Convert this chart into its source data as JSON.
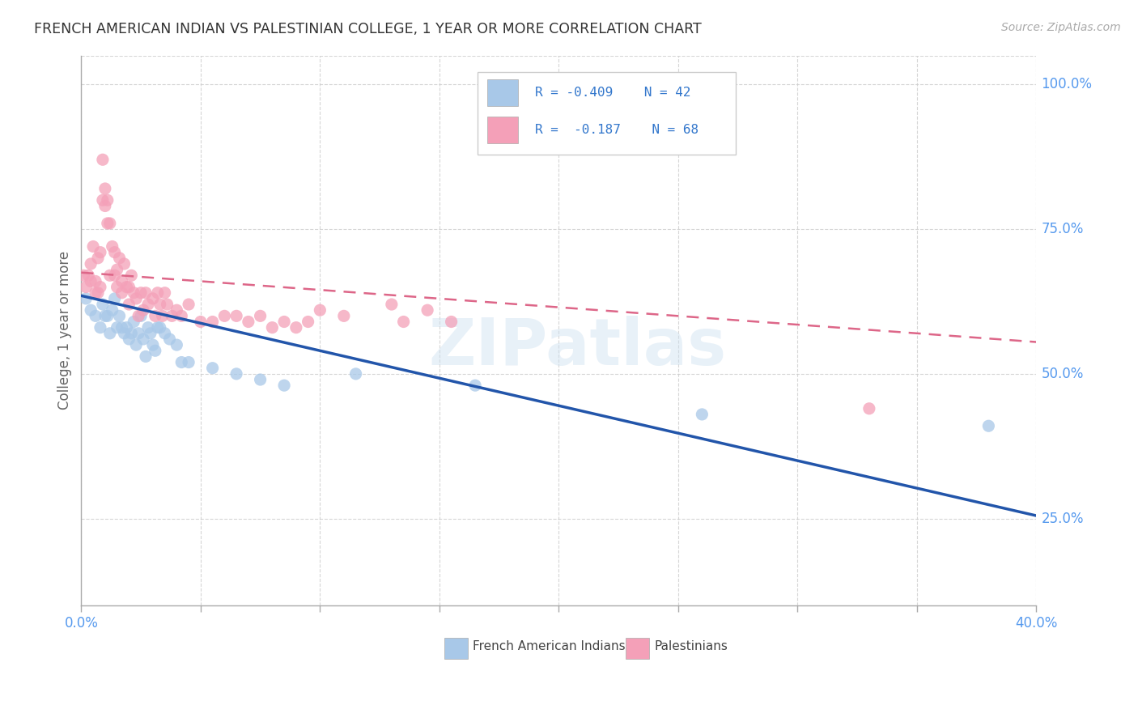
{
  "title": "FRENCH AMERICAN INDIAN VS PALESTINIAN COLLEGE, 1 YEAR OR MORE CORRELATION CHART",
  "source": "Source: ZipAtlas.com",
  "ylabel": "College, 1 year or more",
  "right_yticks": [
    "100.0%",
    "75.0%",
    "50.0%",
    "25.0%"
  ],
  "right_ytick_vals": [
    1.0,
    0.75,
    0.5,
    0.25
  ],
  "legend_blue_label": "French American Indians",
  "legend_pink_label": "Palestinians",
  "legend_blue_R": "R = -0.409",
  "legend_blue_N": "N = 42",
  "legend_pink_R": "R =  -0.187",
  "legend_pink_N": "N = 68",
  "blue_color": "#a8c8e8",
  "pink_color": "#f4a0b8",
  "blue_line_color": "#2255aa",
  "pink_line_color": "#dd6688",
  "watermark": "ZIPatlas",
  "blue_points_x": [
    0.002,
    0.004,
    0.006,
    0.008,
    0.009,
    0.01,
    0.011,
    0.012,
    0.013,
    0.014,
    0.015,
    0.016,
    0.017,
    0.018,
    0.019,
    0.02,
    0.021,
    0.022,
    0.023,
    0.024,
    0.025,
    0.026,
    0.027,
    0.028,
    0.029,
    0.03,
    0.031,
    0.032,
    0.033,
    0.035,
    0.037,
    0.04,
    0.042,
    0.045,
    0.055,
    0.065,
    0.075,
    0.085,
    0.115,
    0.165,
    0.26,
    0.38
  ],
  "blue_points_y": [
    0.63,
    0.61,
    0.6,
    0.58,
    0.62,
    0.6,
    0.6,
    0.57,
    0.61,
    0.63,
    0.58,
    0.6,
    0.58,
    0.57,
    0.58,
    0.56,
    0.57,
    0.59,
    0.55,
    0.57,
    0.6,
    0.56,
    0.53,
    0.58,
    0.57,
    0.55,
    0.54,
    0.58,
    0.58,
    0.57,
    0.56,
    0.55,
    0.52,
    0.52,
    0.51,
    0.5,
    0.49,
    0.48,
    0.5,
    0.48,
    0.43,
    0.41
  ],
  "pink_points_x": [
    0.001,
    0.002,
    0.003,
    0.004,
    0.004,
    0.005,
    0.006,
    0.006,
    0.007,
    0.007,
    0.008,
    0.008,
    0.009,
    0.009,
    0.01,
    0.01,
    0.011,
    0.011,
    0.012,
    0.012,
    0.013,
    0.014,
    0.014,
    0.015,
    0.015,
    0.016,
    0.017,
    0.017,
    0.018,
    0.019,
    0.02,
    0.02,
    0.021,
    0.022,
    0.023,
    0.024,
    0.025,
    0.026,
    0.027,
    0.028,
    0.03,
    0.031,
    0.032,
    0.033,
    0.034,
    0.035,
    0.036,
    0.038,
    0.04,
    0.042,
    0.045,
    0.05,
    0.055,
    0.06,
    0.065,
    0.07,
    0.075,
    0.08,
    0.085,
    0.09,
    0.095,
    0.1,
    0.11,
    0.13,
    0.135,
    0.145,
    0.155,
    0.33
  ],
  "pink_points_y": [
    0.67,
    0.65,
    0.67,
    0.69,
    0.66,
    0.72,
    0.66,
    0.64,
    0.7,
    0.64,
    0.71,
    0.65,
    0.8,
    0.87,
    0.82,
    0.79,
    0.8,
    0.76,
    0.76,
    0.67,
    0.72,
    0.71,
    0.67,
    0.68,
    0.65,
    0.7,
    0.66,
    0.64,
    0.69,
    0.65,
    0.65,
    0.62,
    0.67,
    0.64,
    0.63,
    0.6,
    0.64,
    0.61,
    0.64,
    0.62,
    0.63,
    0.6,
    0.64,
    0.62,
    0.6,
    0.64,
    0.62,
    0.6,
    0.61,
    0.6,
    0.62,
    0.59,
    0.59,
    0.6,
    0.6,
    0.59,
    0.6,
    0.58,
    0.59,
    0.58,
    0.59,
    0.61,
    0.6,
    0.62,
    0.59,
    0.61,
    0.59,
    0.44
  ],
  "xlim": [
    0.0,
    0.4
  ],
  "ylim": [
    0.1,
    1.05
  ],
  "blue_line_x": [
    0.0,
    0.4
  ],
  "blue_line_y": [
    0.635,
    0.255
  ],
  "pink_line_x": [
    0.0,
    0.4
  ],
  "pink_line_y": [
    0.675,
    0.555
  ],
  "x_tick_vals": [
    0.0,
    0.05,
    0.1,
    0.15,
    0.2,
    0.25,
    0.3,
    0.35,
    0.4
  ],
  "grid_color": "#cccccc",
  "title_color": "#333333",
  "source_color": "#aaaaaa",
  "right_label_color": "#5599ee",
  "ylabel_color": "#666666",
  "legend_text_color": "#3377cc"
}
